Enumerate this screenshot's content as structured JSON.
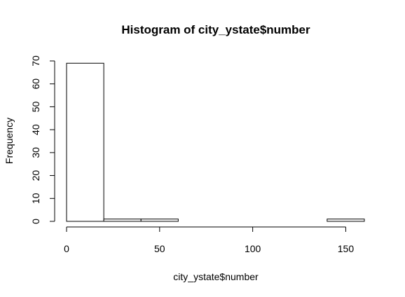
{
  "chart_data": {
    "type": "bar",
    "title": "Histogram of city_ystate$number",
    "xlabel": "city_ystate$number",
    "ylabel": "Frequency",
    "bins": [
      {
        "start": 0,
        "end": 20,
        "count": 69
      },
      {
        "start": 20,
        "end": 40,
        "count": 1
      },
      {
        "start": 40,
        "end": 60,
        "count": 1
      },
      {
        "start": 60,
        "end": 80,
        "count": 0
      },
      {
        "start": 80,
        "end": 100,
        "count": 0
      },
      {
        "start": 100,
        "end": 120,
        "count": 0
      },
      {
        "start": 120,
        "end": 140,
        "count": 0
      },
      {
        "start": 140,
        "end": 160,
        "count": 1
      }
    ],
    "xlim": [
      0,
      160
    ],
    "ylim": [
      0,
      70
    ],
    "xticks": [
      0,
      50,
      100,
      150
    ],
    "yticks": [
      0,
      10,
      20,
      30,
      40,
      50,
      60,
      70
    ],
    "grid": false,
    "bar_fill": "#ffffff",
    "bar_stroke": "#000000"
  }
}
